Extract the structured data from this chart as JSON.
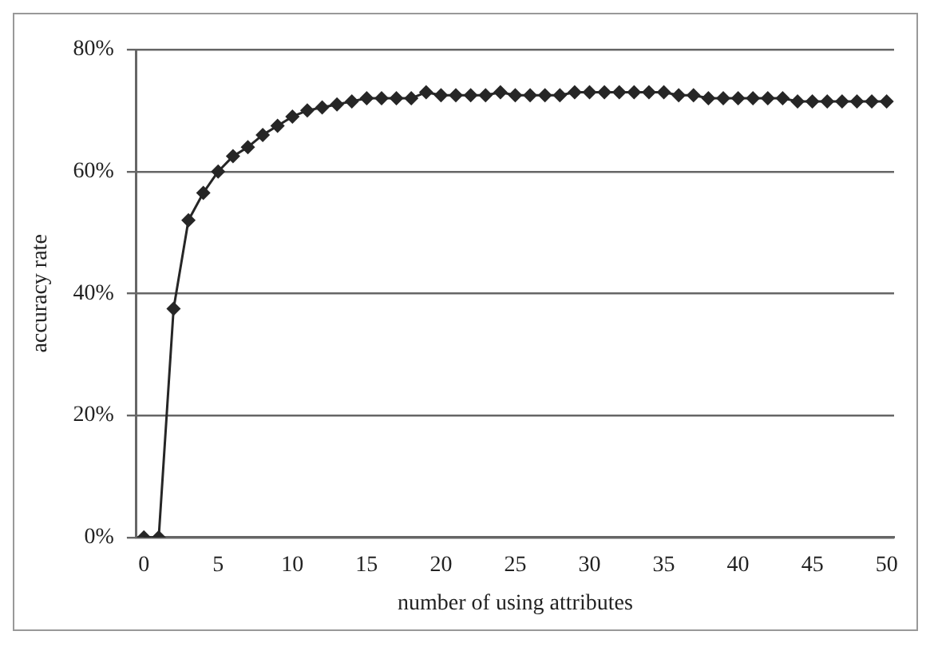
{
  "chart_data": {
    "type": "line",
    "xlabel": "number of using attributes",
    "ylabel": "accuracy rate",
    "x": [
      0,
      1,
      2,
      3,
      4,
      5,
      6,
      7,
      8,
      9,
      10,
      11,
      12,
      13,
      14,
      15,
      16,
      17,
      18,
      19,
      20,
      21,
      22,
      23,
      24,
      25,
      26,
      27,
      28,
      29,
      30,
      31,
      32,
      33,
      34,
      35,
      36,
      37,
      38,
      39,
      40,
      41,
      42,
      43,
      44,
      45,
      46,
      47,
      48,
      49,
      50
    ],
    "series": [
      {
        "color": "#262626",
        "values": [
          0,
          0,
          37.5,
          52,
          56.5,
          60,
          62.5,
          64,
          66,
          67.5,
          69,
          70,
          70.5,
          71,
          71.5,
          72,
          72,
          72,
          72,
          73,
          72.5,
          72.5,
          72.5,
          72.5,
          73,
          72.5,
          72.5,
          72.5,
          72.5,
          73,
          73,
          73,
          73,
          73,
          73,
          73,
          72.5,
          72.5,
          72,
          72,
          72,
          72,
          72,
          72,
          71.5,
          71.5,
          71.5,
          71.5,
          71.5,
          71.5,
          71.5
        ]
      }
    ],
    "xlim": [
      -0.5,
      50.5
    ],
    "xticks": [
      0,
      5,
      10,
      15,
      20,
      25,
      30,
      35,
      40,
      45,
      50
    ],
    "ylim": [
      0,
      80
    ],
    "yticks": [
      {
        "value": 0,
        "label": "0%"
      },
      {
        "value": 20,
        "label": "20%"
      },
      {
        "value": 40,
        "label": "40%"
      },
      {
        "value": 60,
        "label": "60%"
      },
      {
        "value": 80,
        "label": "80%"
      }
    ],
    "grid": "y",
    "marker": "diamond",
    "line_style": "solid",
    "legend": false
  }
}
